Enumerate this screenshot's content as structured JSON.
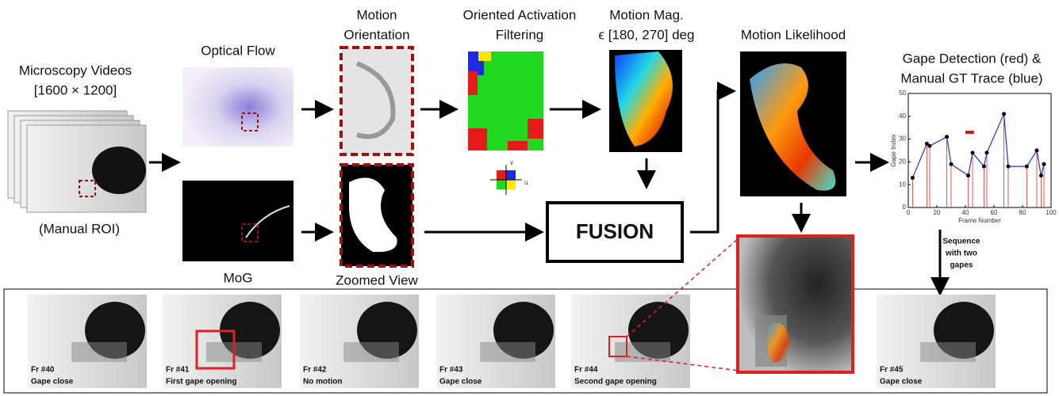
{
  "inputs": {
    "title": "Microscopy Videos",
    "resolution": "[1600 × 1200]",
    "roi": "(Manual ROI)"
  },
  "stages": {
    "optical_flow": "Optical Flow",
    "mog": "MoG",
    "orientation": [
      "Motion",
      "Orientation"
    ],
    "zoomed": "Zoomed View",
    "activation": [
      "Oriented Activation",
      "Filtering"
    ],
    "axes_icon": {
      "v": "v",
      "u": "u"
    },
    "magnitude": [
      "Motion Mag.",
      "ϵ [180, 270] deg"
    ],
    "fusion": "FUSION",
    "likelihood": "Motion Likelihood"
  },
  "plot": {
    "title": [
      "Gape Detection (red) &",
      "Manual GT Trace (blue)"
    ],
    "xlabel": "Frame Number",
    "ylabel": "Gape Index",
    "xlim": [
      0,
      100
    ],
    "ylim": [
      0,
      50
    ],
    "xticks": [
      0,
      20,
      40,
      60,
      80,
      100
    ],
    "yticks": [
      0,
      10,
      20,
      30,
      40,
      50
    ],
    "detections": {
      "x": [
        3,
        13,
        15,
        27,
        30,
        42,
        45,
        53,
        55,
        67,
        70,
        83,
        90,
        93,
        95
      ],
      "y": [
        13,
        28,
        27,
        31,
        19,
        14,
        24,
        18,
        24,
        41,
        18,
        18,
        25,
        14,
        19
      ]
    },
    "gt_bar": {
      "x": [
        40,
        46
      ],
      "y": 33
    }
  },
  "sequence_note": [
    "Sequence",
    "with two",
    "gapes"
  ],
  "frames": [
    {
      "id": "Fr #40",
      "state": "Gape close"
    },
    {
      "id": "Fr #41",
      "state": "First gape opening"
    },
    {
      "id": "Fr #42",
      "state": "No motion"
    },
    {
      "id": "Fr #43",
      "state": "Gape close"
    },
    {
      "id": "Fr #44",
      "state": "Second gape opening"
    },
    {
      "id": "Fr #45",
      "state": "Gape close"
    }
  ]
}
